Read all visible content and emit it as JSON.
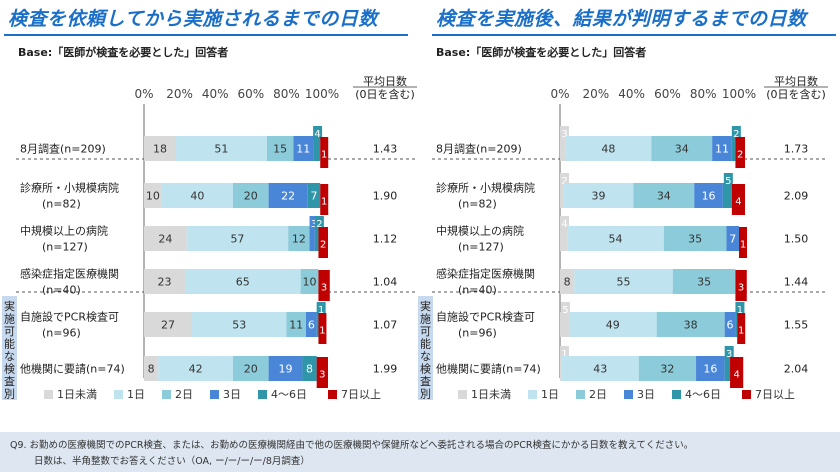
{
  "panels": [
    {
      "title": "検査を依頼してから実施されるまでの日数",
      "base": "Base:「医師が検査を必要とした」回答者",
      "avg_header": [
        "平均日数",
        "(0日を含む)"
      ],
      "side_label": "実施可能な検査別",
      "chart_data": {
        "type": "bar",
        "orientation": "horizontal",
        "stacked": true,
        "normalized": true,
        "xlim": [
          0,
          100
        ],
        "x_tick_labels": [
          "0%",
          "20%",
          "40%",
          "60%",
          "80%",
          "100%"
        ],
        "categories": [
          "8月調査(n=209)",
          "診療所・小規模病院(n=82)",
          "中規模以上の病院(n=127)",
          "感染症指定医療機関(n=40)",
          "自施設でPCR検査可(n=96)",
          "他機関に要請(n=74)"
        ],
        "series": [
          {
            "name": "1日未満",
            "values": [
              18,
              10,
              24,
              23,
              27,
              8
            ]
          },
          {
            "name": "1日",
            "values": [
              51,
              40,
              57,
              65,
              53,
              42
            ]
          },
          {
            "name": "2日",
            "values": [
              15,
              20,
              12,
              10,
              11,
              20
            ]
          },
          {
            "name": "3日",
            "values": [
              11,
              22,
              3,
              0,
              6,
              19
            ]
          },
          {
            "name": "4〜6日",
            "values": [
              4,
              7,
              2,
              0,
              1,
              8
            ]
          },
          {
            "name": "7日以上",
            "values": [
              1,
              1,
              2,
              3,
              1,
              3
            ]
          }
        ],
        "averages": [
          "1.43",
          "1.90",
          "1.12",
          "1.04",
          "1.07",
          "1.99"
        ]
      }
    },
    {
      "title": "検査を実施後、結果が判明するまでの日数",
      "base": "Base:「医師が検査を必要とした」回答者",
      "avg_header": [
        "平均日数",
        "(0日を含む)"
      ],
      "side_label": "実施可能な検査別",
      "chart_data": {
        "type": "bar",
        "orientation": "horizontal",
        "stacked": true,
        "normalized": true,
        "xlim": [
          0,
          100
        ],
        "x_tick_labels": [
          "0%",
          "20%",
          "40%",
          "60%",
          "80%",
          "100%"
        ],
        "categories": [
          "8月調査(n=209)",
          "診療所・小規模病院(n=82)",
          "中規模以上の病院(n=127)",
          "感染症指定医療機関(n=40)",
          "自施設でPCR検査可(n=96)",
          "他機関に要請(n=74)"
        ],
        "series": [
          {
            "name": "1日未満",
            "values": [
              3,
              2,
              4,
              8,
              5,
              1
            ]
          },
          {
            "name": "1日",
            "values": [
              48,
              39,
              54,
              55,
              49,
              43
            ]
          },
          {
            "name": "2日",
            "values": [
              34,
              34,
              35,
              35,
              38,
              32
            ]
          },
          {
            "name": "3日",
            "values": [
              11,
              16,
              7,
              0,
              6,
              16
            ]
          },
          {
            "name": "4〜6日",
            "values": [
              2,
              5,
              0,
              0,
              1,
              3
            ]
          },
          {
            "name": "7日以上",
            "values": [
              2,
              4,
              1,
              3,
              1,
              4
            ]
          }
        ],
        "averages": [
          "1.73",
          "2.09",
          "1.50",
          "1.44",
          "1.55",
          "2.04"
        ]
      }
    }
  ],
  "row_labels": [
    [
      "8月調査(n=209)"
    ],
    [
      "診療所・小規模病院",
      "(n=82)"
    ],
    [
      "中規模以上の病院",
      "(n=127)"
    ],
    [
      "感染症指定医療機関",
      "(n=40)"
    ],
    [
      "自施設でPCR検査可",
      "(n=96)"
    ],
    [
      "他機関に要請(n=74)"
    ]
  ],
  "colors": [
    "#d9d9d9",
    "#bfe3ef",
    "#8ccbd9",
    "#4a86d8",
    "#2e96a8",
    "#c00000"
  ],
  "footer": {
    "line1": "Q9. お勤めの医療機関でのPCR検査、または、お勤めの医療機関経由で他の医療機関や保健所などへ委託される場合のPCR検査にかかる日数を教えてください。",
    "line2": "日数は、半角整数でお答えください（OA, ー/ー/ー/ー/8月調査）"
  }
}
